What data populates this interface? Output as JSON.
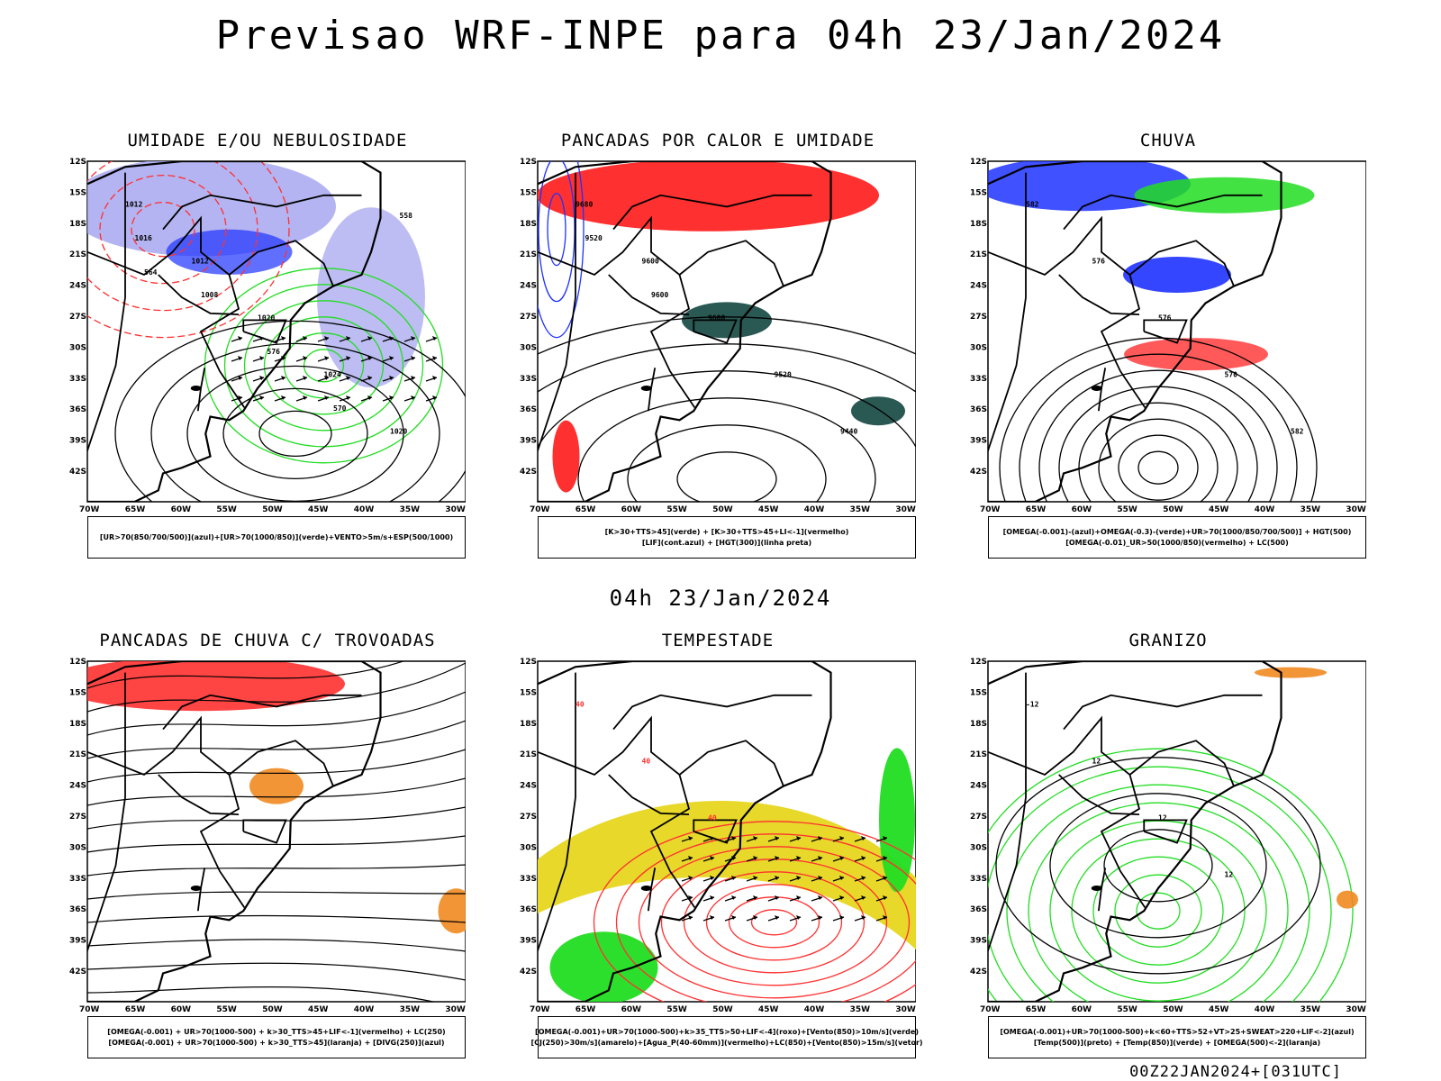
{
  "title": "Previsao WRF-INPE  para 04h 23/Jan/2024",
  "mid_time": "04h 23/Jan/2024",
  "footer": "00Z22JAN2024+[031UTC]",
  "axis": {
    "lat_labels": [
      "12S",
      "15S",
      "18S",
      "21S",
      "24S",
      "27S",
      "30S",
      "33S",
      "36S",
      "39S",
      "42S"
    ],
    "lon_labels": [
      "70W",
      "65W",
      "60W",
      "55W",
      "50W",
      "45W",
      "40W",
      "35W",
      "30W"
    ]
  },
  "colors": {
    "blue": "#1e32ff",
    "green": "#22dd22",
    "red": "#ff3030",
    "lavender": "#a7a7f0",
    "dark_teal": "#1f4f4a",
    "yellow": "#e7d82a",
    "orange": "#f08a20"
  },
  "panels": [
    {
      "title": "UMIDADE E/OU NEBULOSIDADE",
      "legend": [
        "[UR>70(850/700/500)](azul)+[UR>70(1000/850)](verde)+VENTO>5m/s+ESP(500/1000)"
      ],
      "labels": [
        "1012",
        "1012",
        "1020",
        "1024",
        "1020",
        "1016",
        "1008",
        "576",
        "570",
        "558",
        "564"
      ]
    },
    {
      "title": "PANCADAS POR CALOR E UMIDADE",
      "legend": [
        "[K>30+TTS>45](verde) + [K>30+TTS>45+LI<-1](vermelho)",
        "[LIF](cont.azul) + [HGT(300)](linha preta)"
      ],
      "labels": [
        "9680",
        "9600",
        "9600",
        "9520",
        "9440",
        "9520",
        "9600"
      ]
    },
    {
      "title": "CHUVA",
      "legend": [
        "[OMEGA(-0.001)-(azul)+OMEGA(-0.3)-(verde)+UR>70(1000/850/700/500)] + HGT(500)",
        "[OMEGA(-0.01)_UR>50(1000/850)(vermelho) + LC(500)"
      ],
      "labels": [
        "582",
        "576",
        "576",
        "570",
        "582"
      ]
    },
    {
      "title": "PANCADAS DE CHUVA C/ TROVOADAS",
      "legend": [
        "[OMEGA(-0.001) + UR>70(1000-500) + k>30_TTS>45+LIF<-1](vermelho) + LC(250)",
        "[OMEGA(-0.001) + UR>70(1000-500) + k>30_TTS>45](laranja) + [DIVG(250)](azul)"
      ],
      "labels": []
    },
    {
      "title": "TEMPESTADE",
      "legend": [
        "[OMEGA(-0.001)+UR>70(1000-500)+k>35_TTS>50+LIF<-4](roxo)+[Vento(850)>10m/s](verde)",
        "[CJ(250)>30m/s](amarelo)+[Agua_P(40-60mm)](vermelho)+LC(850)+[Vento(850)>15m/s](vetor)"
      ],
      "labels": [
        "40",
        "40",
        "40"
      ]
    },
    {
      "title": "GRANIZO",
      "legend": [
        "[OMEGA(-0.001)+UR>70(1000-500)+k<60+TTS>52+VT>25+SWEAT>220+LIF<-2](azul)",
        "[Temp(500)](preto) + [Temp(850)](verde) + [OMEGA(500)<-2](laranja)"
      ],
      "labels": [
        "-12",
        "12",
        "12",
        "12"
      ]
    }
  ]
}
